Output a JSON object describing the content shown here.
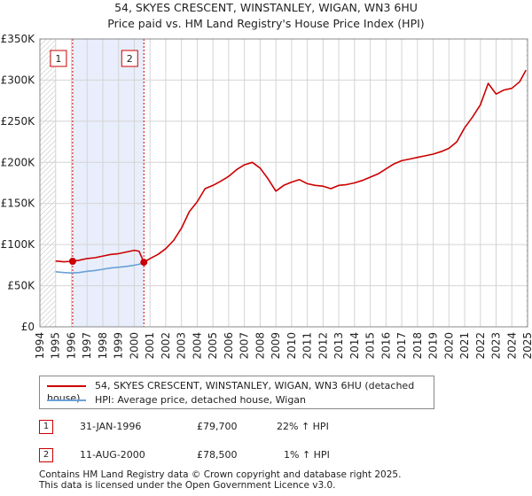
{
  "chart_data": {
    "type": "line",
    "title": "54, SKYES CRESCENT, WINSTANLEY, WIGAN, WN3 6HU",
    "subtitle": "Price paid vs. HM Land Registry's House Price Index (HPI)",
    "xlabel": "",
    "ylabel": "",
    "xlim": [
      1994,
      2025
    ],
    "ylim": [
      0,
      350000
    ],
    "y_ticks": [
      0,
      50000,
      100000,
      150000,
      200000,
      250000,
      300000,
      350000
    ],
    "y_tick_labels": [
      "£0",
      "£50K",
      "£100K",
      "£150K",
      "£200K",
      "£250K",
      "£300K",
      "£350K"
    ],
    "x_ticks": [
      1994,
      1995,
      1996,
      1997,
      1998,
      1999,
      2000,
      2001,
      2002,
      2003,
      2004,
      2005,
      2006,
      2007,
      2008,
      2009,
      2010,
      2011,
      2012,
      2013,
      2014,
      2015,
      2016,
      2017,
      2018,
      2019,
      2020,
      2021,
      2022,
      2023,
      2024,
      2025
    ],
    "grid": true,
    "data_start": 1995.0,
    "data_end": 2024.9,
    "shaded_span": [
      1996.08,
      2000.61
    ],
    "series": [
      {
        "name": "54, SKYES CRESCENT, WINSTANLEY, WIGAN, WN3 6HU (detached house)",
        "color": "#cc0000",
        "x": [
          1995.0,
          1995.5,
          1996.08,
          1996.5,
          1997.0,
          1997.5,
          1998.0,
          1998.5,
          1999.0,
          1999.5,
          2000.0,
          2000.3,
          2000.61,
          2001.0,
          2001.5,
          2002.0,
          2002.5,
          2003.0,
          2003.5,
          2004.0,
          2004.5,
          2005.0,
          2005.5,
          2006.0,
          2006.5,
          2007.0,
          2007.5,
          2008.0,
          2008.5,
          2009.0,
          2009.5,
          2010.0,
          2010.5,
          2011.0,
          2011.5,
          2012.0,
          2012.5,
          2013.0,
          2013.5,
          2014.0,
          2014.5,
          2015.0,
          2015.5,
          2016.0,
          2016.5,
          2017.0,
          2017.5,
          2018.0,
          2018.5,
          2019.0,
          2019.5,
          2020.0,
          2020.5,
          2021.0,
          2021.5,
          2022.0,
          2022.5,
          2023.0,
          2023.5,
          2024.0,
          2024.5,
          2024.9
        ],
        "values": [
          80000,
          79000,
          79700,
          81000,
          83000,
          84000,
          86000,
          88000,
          89000,
          91000,
          93000,
          92000,
          78500,
          83000,
          88000,
          95000,
          105000,
          120000,
          140000,
          152000,
          168000,
          172000,
          177000,
          183000,
          191000,
          197000,
          200000,
          193000,
          180000,
          165000,
          172000,
          176000,
          179000,
          174000,
          172000,
          171000,
          168000,
          172000,
          173000,
          175000,
          178000,
          182000,
          186000,
          192000,
          198000,
          202000,
          204000,
          206000,
          208000,
          210000,
          213000,
          217000,
          225000,
          242000,
          255000,
          270000,
          296000,
          283000,
          288000,
          290000,
          298000,
          312000
        ]
      },
      {
        "name": "HPI: Average price, detached house, Wigan",
        "color": "#6aa0d8",
        "x": [
          1995.0,
          1995.5,
          1996.0,
          1996.5,
          1997.0,
          1997.5,
          1998.0,
          1998.5,
          1999.0,
          1999.5,
          2000.0,
          2000.3,
          2000.61
        ],
        "values": [
          67000,
          66000,
          65500,
          66000,
          67500,
          68500,
          70000,
          71500,
          72500,
          73500,
          75000,
          76000,
          77500
        ]
      }
    ],
    "sales": [
      {
        "marker": "1",
        "date": "31-JAN-1996",
        "x": 1996.08,
        "price": 79700,
        "price_label": "£79,700",
        "hpi": "22% ↑ HPI"
      },
      {
        "marker": "2",
        "date": "11-AUG-2000",
        "x": 2000.61,
        "price": 78500,
        "price_label": "£78,500",
        "hpi": "1% ↑ HPI"
      }
    ]
  },
  "legend": {
    "property": "54, SKYES CRESCENT, WINSTANLEY, WIGAN, WN3 6HU (detached house)",
    "hpi": "HPI: Average price, detached house, Wigan"
  },
  "colors": {
    "price_line": "#cc0000",
    "hpi_line": "#6aa0d8",
    "shade": "#e8eefb",
    "grid": "#d4d4d4"
  },
  "footer": {
    "line1": "Contains HM Land Registry data © Crown copyright and database right 2025.",
    "line2": "This data is licensed under the Open Government Licence v3.0."
  }
}
